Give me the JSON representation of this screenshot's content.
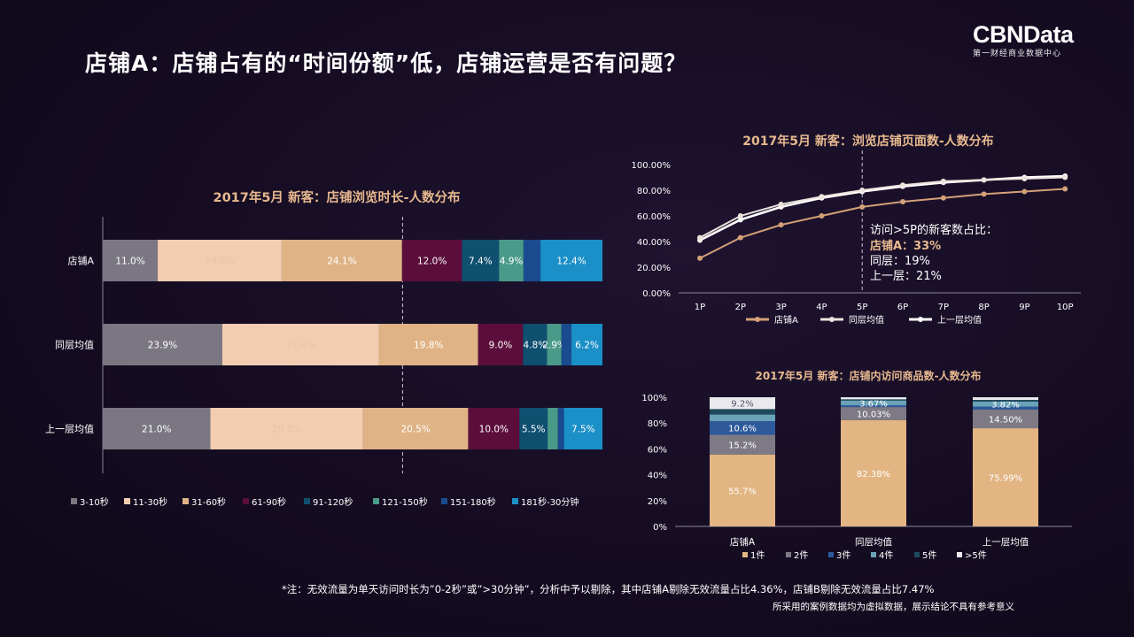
{
  "title": "店铺A：店铺占有的“时间份额”低，店铺运营是否有问题？",
  "logo": {
    "main": "CBNData",
    "sub": "第一财经商业数据中心"
  },
  "colors": {
    "c1": "#7b7782",
    "c2": "#f2cdb1",
    "c3": "#dfb386",
    "c4": "#5b0e3b",
    "c5": "#0f4f70",
    "c6": "#4a9a8a",
    "c7": "#1a4b8f",
    "c8": "#1b8fc7",
    "line_a": "#d4a078",
    "line_same": "#ece3dc",
    "line_upper": "#ffffff",
    "accent": "#e6b88e"
  },
  "chart_data": [
    {
      "type": "bar",
      "orientation": "horizontal-stacked-100",
      "title": "2017年5月 新客：店铺浏览时长-人数分布",
      "categories": [
        "店铺A",
        "同层均值",
        "上一层均值"
      ],
      "series": [
        {
          "name": "3-10秒",
          "values": [
            11.0,
            23.9,
            21.0
          ],
          "labels": [
            "11.0%",
            "23.9%",
            "21.0%"
          ]
        },
        {
          "name": "11-30秒",
          "values": [
            24.8,
            31.4,
            29.8
          ],
          "labels": [
            "24.8%",
            "31.4%",
            "29.8%"
          ]
        },
        {
          "name": "31-60秒",
          "values": [
            24.1,
            19.8,
            20.5
          ],
          "labels": [
            "24.1%",
            "19.8%",
            "20.5%"
          ]
        },
        {
          "name": "61-90秒",
          "values": [
            12.0,
            9.0,
            10.0
          ],
          "labels": [
            "12.0%",
            "9.0%",
            "10.0%"
          ]
        },
        {
          "name": "91-120秒",
          "values": [
            7.4,
            4.8,
            5.5
          ],
          "labels": [
            "7.4%",
            "4.8%",
            "5.5%"
          ]
        },
        {
          "name": "121-150秒",
          "values": [
            4.9,
            2.9,
            2.0
          ],
          "labels": [
            "4.9%",
            "2.9%",
            ""
          ]
        },
        {
          "name": "151-180秒",
          "values": [
            3.4,
            2.0,
            1.2
          ],
          "labels": [
            "",
            "",
            ""
          ]
        },
        {
          "name": "181秒-30分钟",
          "values": [
            12.4,
            6.2,
            7.5
          ],
          "labels": [
            "12.4%",
            "6.2%",
            "7.5%"
          ]
        }
      ],
      "reference_line_x": 60
    },
    {
      "type": "line",
      "title": "2017年5月 新客：浏览店铺页面数-人数分布",
      "x": [
        "1P",
        "2P",
        "3P",
        "4P",
        "5P",
        "6P",
        "7P",
        "8P",
        "9P",
        "10P"
      ],
      "ylim": [
        0,
        100
      ],
      "yticks": [
        "0.00%",
        "20.00%",
        "40.00%",
        "60.00%",
        "80.00%",
        "100.00%"
      ],
      "series": [
        {
          "name": "店铺A",
          "values": [
            27,
            43,
            53,
            60,
            67,
            71,
            74,
            77,
            79,
            81
          ]
        },
        {
          "name": "同层均值",
          "values": [
            43,
            60,
            69,
            75,
            80,
            84,
            87,
            88,
            89,
            90
          ]
        },
        {
          "name": "上一层均值",
          "values": [
            41,
            57,
            67,
            74,
            79,
            83,
            86,
            88,
            90,
            91
          ]
        }
      ],
      "reference_x": "5P",
      "annotation": {
        "line1": "访问>5P的新客数占比：",
        "line2": "店铺A：33%",
        "line3": "同层：19%",
        "line4": "上一层：21%"
      }
    },
    {
      "type": "bar",
      "orientation": "vertical-stacked-100",
      "title": "2017年5月 新客：店铺内访问商品数-人数分布",
      "categories": [
        "店铺A",
        "同层均值",
        "上一层均值"
      ],
      "ylim": [
        0,
        100
      ],
      "yticks": [
        "0%",
        "20%",
        "40%",
        "60%",
        "80%",
        "100%"
      ],
      "series": [
        {
          "name": "1件",
          "values": [
            55.7,
            82.38,
            75.99
          ],
          "labels": [
            "55.7%",
            "82.38%",
            "75.99%"
          ]
        },
        {
          "name": "2件",
          "values": [
            15.2,
            10.03,
            14.5
          ],
          "labels": [
            "15.2%",
            "10.03%",
            "14.50%"
          ]
        },
        {
          "name": "3件",
          "values": [
            10.6,
            1.4,
            2.3
          ],
          "labels": [
            "10.6%",
            "",
            ""
          ]
        },
        {
          "name": "4件",
          "values": [
            5.1,
            3.67,
            3.82
          ],
          "labels": [
            "",
            "3.67%",
            "3.82%"
          ]
        },
        {
          "name": "5件",
          "values": [
            4.2,
            0.9,
            1.3
          ],
          "labels": [
            "",
            "",
            ""
          ]
        },
        {
          "name": ">5件",
          "values": [
            9.2,
            1.62,
            2.09
          ],
          "labels": [
            "9.2%",
            "",
            ""
          ]
        }
      ]
    }
  ],
  "footnote": "*注：无效流量为单天访问时长为”0-2秒”或”>30分钟”，分析中予以剔除，其中店铺A剔除无效流量占比4.36%，店铺B剔除无效流量占比7.47%",
  "disclaimer": "所采用的案例数据均为虚拟数据，展示结论不具有参考意义"
}
